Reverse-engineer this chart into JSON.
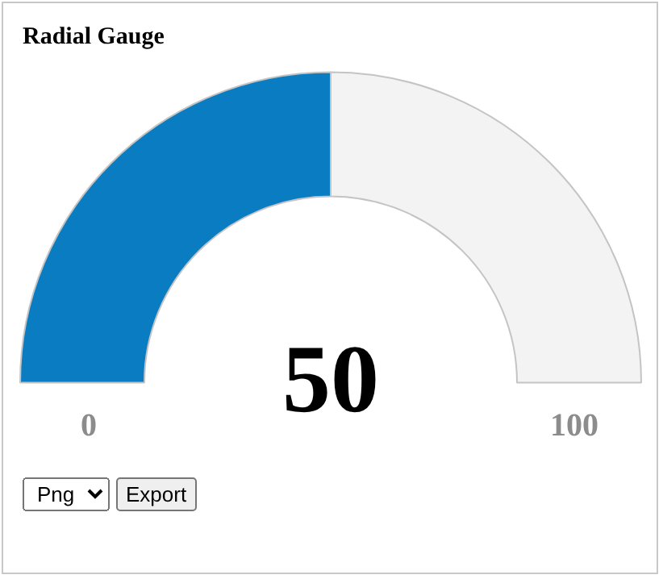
{
  "chart_data": {
    "type": "donut",
    "title": "Radial Gauge",
    "categories": [
      null,
      null
    ],
    "values": [
      50,
      50
    ],
    "colors": [
      "#0a7cc1",
      "#f3f3f3"
    ],
    "annotations": [
      "50",
      "0",
      "100",
      "Png",
      "Export"
    ]
  }
}
